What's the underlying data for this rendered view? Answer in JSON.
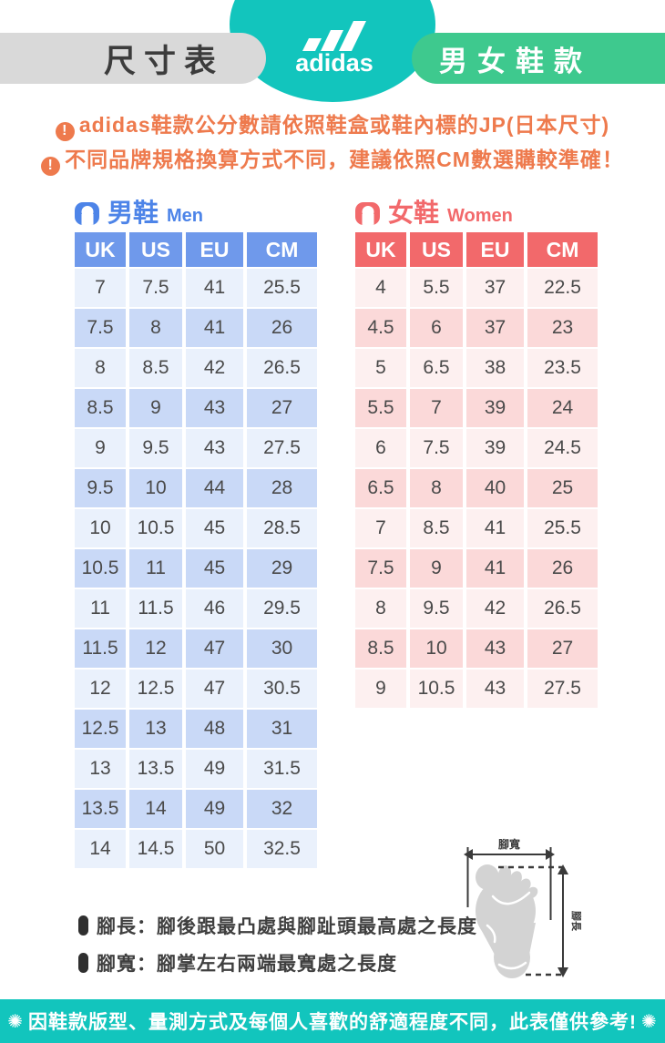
{
  "header": {
    "size_chart_label": "尺寸表",
    "brand_logo": "adidas",
    "category_badge": "男女鞋款"
  },
  "notice_icon_glyph": "!",
  "notices": [
    "adidas鞋款公分數請依照鞋盒或鞋內標的JP(日本尺寸)",
    "不同品牌規格換算方式不同，建議依照CM數選購較準確！"
  ],
  "size_tables": {
    "columns": [
      "UK",
      "US",
      "EU",
      "CM"
    ],
    "men": {
      "title_zh": "男鞋",
      "title_en": "Men",
      "rows": [
        [
          "7",
          "7.5",
          "41",
          "25.5"
        ],
        [
          "7.5",
          "8",
          "41",
          "26"
        ],
        [
          "8",
          "8.5",
          "42",
          "26.5"
        ],
        [
          "8.5",
          "9",
          "43",
          "27"
        ],
        [
          "9",
          "9.5",
          "43",
          "27.5"
        ],
        [
          "9.5",
          "10",
          "44",
          "28"
        ],
        [
          "10",
          "10.5",
          "45",
          "28.5"
        ],
        [
          "10.5",
          "11",
          "45",
          "29"
        ],
        [
          "11",
          "11.5",
          "46",
          "29.5"
        ],
        [
          "11.5",
          "12",
          "47",
          "30"
        ],
        [
          "12",
          "12.5",
          "47",
          "30.5"
        ],
        [
          "12.5",
          "13",
          "48",
          "31"
        ],
        [
          "13",
          "13.5",
          "49",
          "31.5"
        ],
        [
          "13.5",
          "14",
          "49",
          "32"
        ],
        [
          "14",
          "14.5",
          "50",
          "32.5"
        ]
      ]
    },
    "women": {
      "title_zh": "女鞋",
      "title_en": "Women",
      "rows": [
        [
          "4",
          "5.5",
          "37",
          "22.5"
        ],
        [
          "4.5",
          "6",
          "37",
          "23"
        ],
        [
          "5",
          "6.5",
          "38",
          "23.5"
        ],
        [
          "5.5",
          "7",
          "39",
          "24"
        ],
        [
          "6",
          "7.5",
          "39",
          "24.5"
        ],
        [
          "6.5",
          "8",
          "40",
          "25"
        ],
        [
          "7",
          "8.5",
          "41",
          "25.5"
        ],
        [
          "7.5",
          "9",
          "41",
          "26"
        ],
        [
          "8",
          "9.5",
          "42",
          "26.5"
        ],
        [
          "8.5",
          "10",
          "43",
          "27"
        ],
        [
          "9",
          "10.5",
          "43",
          "27.5"
        ]
      ]
    }
  },
  "measurement_notes": [
    "腳長：腳後跟最凸處與腳趾頭最高處之長度",
    "腳寬：腳掌左右兩端最寬處之長度"
  ],
  "foot_diagram": {
    "width_label": "腳寬",
    "length_label": "腳長"
  },
  "footer": {
    "star_icon": "✺",
    "note": "因鞋款版型、量測方式及每個人喜歡的舒適程度不同，此表僅供參考!"
  },
  "colors": {
    "teal": "#12c5bd",
    "green_badge": "#3ec98e",
    "gray_badge": "#d9d9d9",
    "notice_orange": "#ee7a4d",
    "men_blue": "#6f99eb",
    "men_row_light": "#eaf1fc",
    "men_row_dark": "#c9d9f7",
    "women_red": "#f2696b",
    "women_row_light": "#fdf0f0",
    "women_row_dark": "#fbd9d9",
    "text_dark": "#4a4a4a"
  }
}
